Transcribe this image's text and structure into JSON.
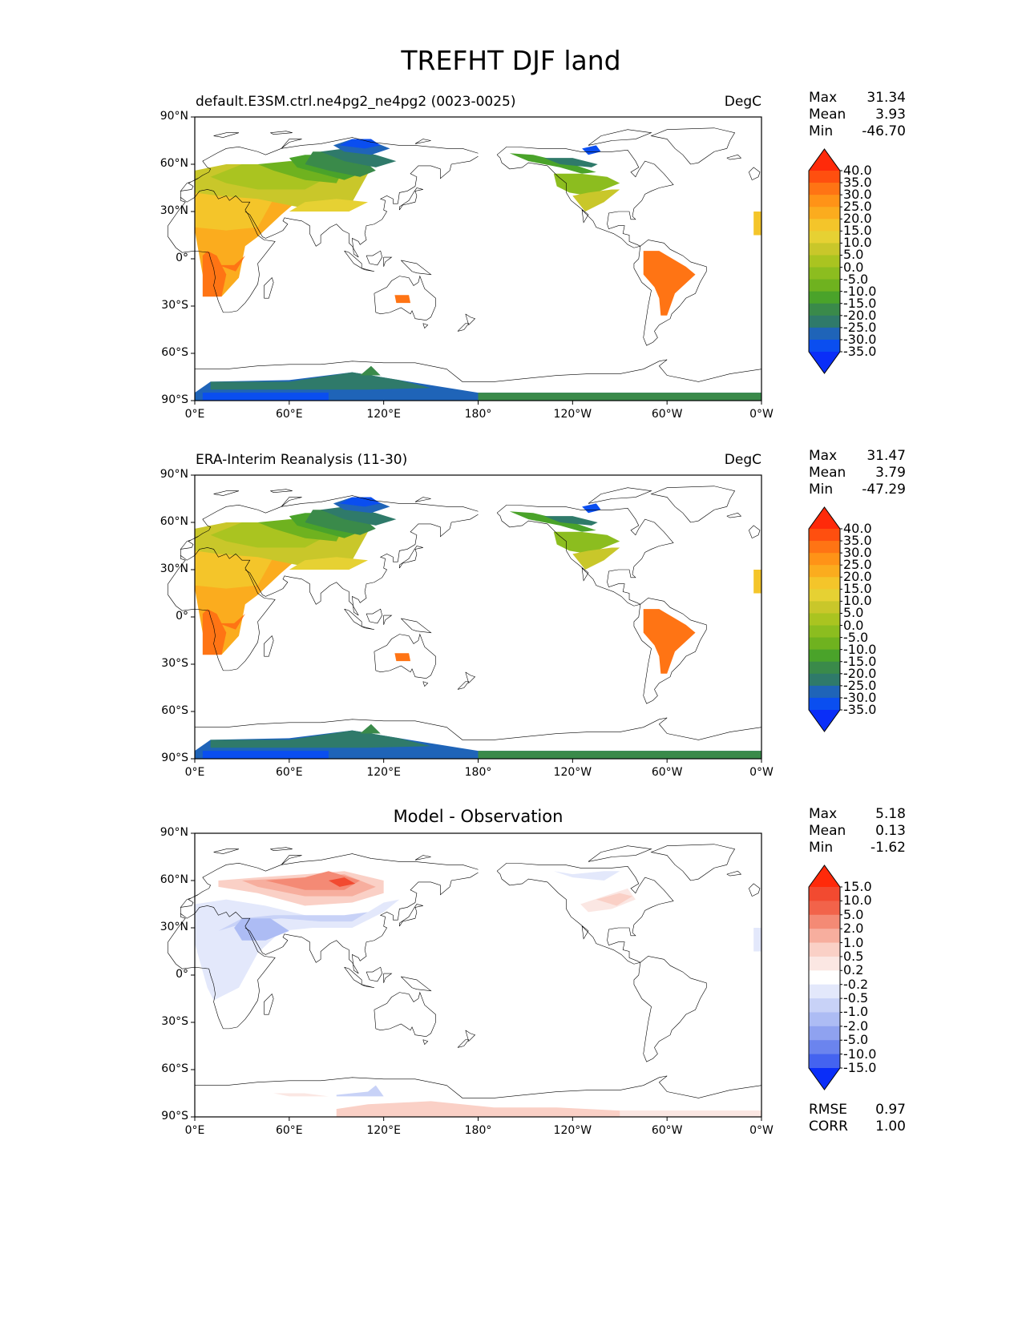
{
  "title": "TREFHT DJF land",
  "axes": {
    "lat_ticks": [
      "90°N",
      "60°N",
      "30°N",
      "0°",
      "30°S",
      "60°S",
      "90°S"
    ],
    "lon_ticks": [
      "0°E",
      "60°E",
      "120°E",
      "180°",
      "120°W",
      "60°W",
      "0°W"
    ]
  },
  "panels": [
    {
      "title_left": "default.E3SM.ctrl.ne4pg2_ne4pg2 (0023-0025)",
      "title_right": "DegC",
      "title_center": "",
      "stats": [
        {
          "label": "Max",
          "value": "31.34"
        },
        {
          "label": "Mean",
          "value": "3.93"
        },
        {
          "label": "Min",
          "value": "-46.70"
        }
      ],
      "colorbar_labels": [
        "40.0",
        "35.0",
        "30.0",
        "25.0",
        "20.0",
        "15.0",
        "10.0",
        "5.0",
        "0.0",
        "-5.0",
        "-10.0",
        "-15.0",
        "-20.0",
        "-25.0",
        "-30.0",
        "-35.0"
      ]
    },
    {
      "title_left": "ERA-Interim Reanalysis (11-30)",
      "title_right": "DegC",
      "title_center": "",
      "stats": [
        {
          "label": "Max",
          "value": "31.47"
        },
        {
          "label": "Mean",
          "value": "3.79"
        },
        {
          "label": "Min",
          "value": "-47.29"
        }
      ],
      "colorbar_labels": [
        "40.0",
        "35.0",
        "30.0",
        "25.0",
        "20.0",
        "15.0",
        "10.0",
        "5.0",
        "0.0",
        "-5.0",
        "-10.0",
        "-15.0",
        "-20.0",
        "-25.0",
        "-30.0",
        "-35.0"
      ]
    },
    {
      "title_left": "",
      "title_right": "",
      "title_center": "Model - Observation",
      "stats": [
        {
          "label": "Max",
          "value": "5.18"
        },
        {
          "label": "Mean",
          "value": "0.13"
        },
        {
          "label": "Min",
          "value": "-1.62"
        }
      ],
      "colorbar_labels": [
        "15.0",
        "10.0",
        "5.0",
        "2.0",
        "1.0",
        "0.5",
        "0.2",
        "-0.2",
        "-0.5",
        "-1.0",
        "-2.0",
        "-5.0",
        "-10.0",
        "-15.0"
      ],
      "metrics": [
        {
          "label": "RMSE",
          "value": "0.97"
        },
        {
          "label": "CORR",
          "value": "1.00"
        }
      ]
    }
  ],
  "colors": {
    "temp_scale": [
      "#ff2a0a",
      "#ff4f0f",
      "#ff7414",
      "#ff9317",
      "#fbac1e",
      "#f4c52a",
      "#e6d133",
      "#c9c72a",
      "#aac420",
      "#8cbd1f",
      "#6fb21f",
      "#4aa32a",
      "#3a8a4a",
      "#2f7a6a",
      "#1f64b8",
      "#0a4ef0",
      "#0a2ef8"
    ],
    "diff_scale": [
      "#ff2a0a",
      "#f24a30",
      "#f2634a",
      "#f48a75",
      "#f7ae9e",
      "#fad0c6",
      "#fbe7e3",
      "#ffffff",
      "#e3e8fb",
      "#c8d2f7",
      "#adbcf4",
      "#8fa2f0",
      "#6b84ee",
      "#4463f0",
      "#2e50f2",
      "#0a2ef8"
    ]
  }
}
